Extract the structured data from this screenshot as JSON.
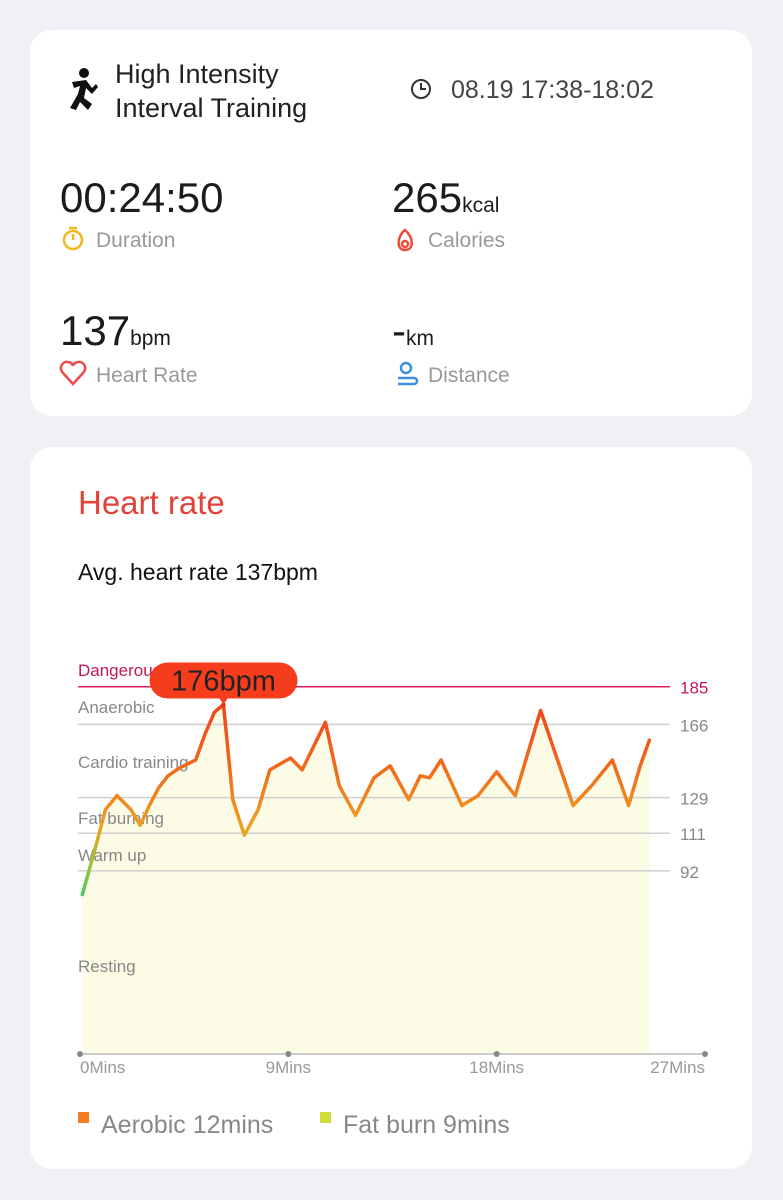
{
  "workout": {
    "title_line1": "High Intensity",
    "title_line2": "Interval Training",
    "time": "08.19 17:38-18:02"
  },
  "stats": {
    "duration": {
      "value": "00:24:50",
      "label": "Duration"
    },
    "calories": {
      "value": "265",
      "unit": "kcal",
      "label": "Calories"
    },
    "heart_rate": {
      "value": "137",
      "unit": "bpm",
      "label": "Heart Rate"
    },
    "distance": {
      "value": "-",
      "unit": "km",
      "label": "Distance"
    }
  },
  "chart_data": {
    "type": "line",
    "title": "Heart rate",
    "subtitle": "Avg. heart rate 137bpm",
    "zones": [
      "Dangerous",
      "Anaerobic",
      "Cardio training",
      "Fat burning",
      "Warm up",
      "Resting"
    ],
    "x": [
      0.1,
      0.65,
      1.1,
      1.6,
      2.2,
      2.6,
      3.0,
      3.4,
      3.8,
      4.3,
      5.0,
      5.4,
      5.8,
      6.2,
      6.6,
      7.1,
      7.7,
      8.2,
      9.1,
      9.6,
      10.6,
      11.2,
      11.9,
      12.7,
      13.4,
      14.2,
      14.7,
      15.1,
      15.6,
      16.5,
      17.2,
      18.0,
      18.8,
      19.9,
      21.3,
      22.1,
      23.0,
      23.7,
      24.2,
      24.6
    ],
    "values": [
      80,
      103,
      123,
      130,
      123,
      115,
      125,
      134,
      140,
      144,
      148,
      161,
      172,
      176,
      128,
      110,
      123,
      143,
      149,
      143,
      167,
      135,
      120,
      139,
      145,
      128,
      140,
      139,
      148,
      125,
      130,
      142,
      130,
      173,
      125,
      135,
      148,
      125,
      145,
      158
    ],
    "peak": {
      "x": 6.2,
      "value": 176,
      "label": "176bpm"
    },
    "xlim": [
      0,
      27
    ],
    "xticks": [
      {
        "value": 0,
        "label": "0Mins"
      },
      {
        "value": 9,
        "label": "9Mins"
      },
      {
        "value": 18,
        "label": "18Mins"
      },
      {
        "value": 27,
        "label": "27Mins"
      }
    ],
    "ylim": [
      0,
      200
    ],
    "yticks": [
      185,
      166,
      129,
      111,
      92
    ],
    "grid": true,
    "legend": [
      {
        "name": "Aerobic 12mins",
        "color": "#f57c1f"
      },
      {
        "name": "Fat burn 9mins",
        "color": "#cfdc3a"
      }
    ]
  }
}
